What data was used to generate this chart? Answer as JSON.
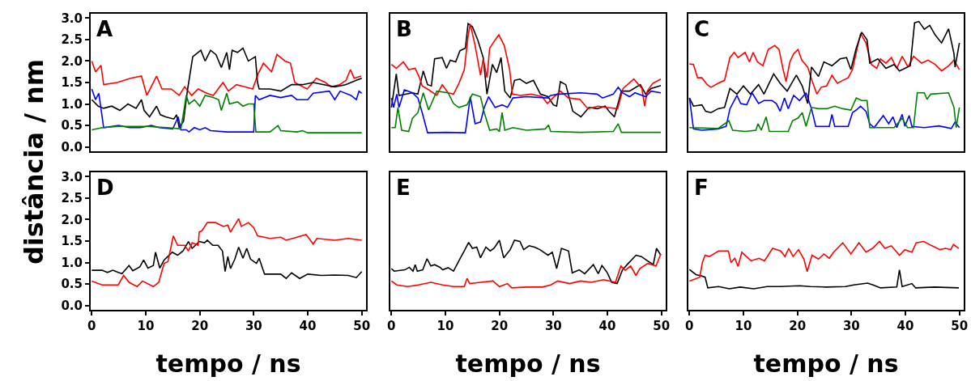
{
  "chart_data": [
    {
      "type": "line",
      "title": "A",
      "ylabel": "distância / nm",
      "xlim": [
        -0.2,
        50.8
      ],
      "ylim": [
        -0.1,
        3.1
      ],
      "xticks": [
        0,
        10,
        20,
        30,
        40,
        50
      ],
      "yticks": [
        {
          "value": 0,
          "label": "0.0"
        },
        {
          "value": 0.5,
          "label": "0.5"
        },
        {
          "value": 1,
          "label": "1.0"
        },
        {
          "value": 1.5,
          "label": "1.5"
        },
        {
          "value": 2,
          "label": "2.0"
        },
        {
          "value": 2.5,
          "label": "2.5"
        },
        {
          "value": 3,
          "label": "3.0"
        }
      ],
      "tick_labels": "y",
      "series": [
        {
          "color": "#ff0000",
          "x": [
            0,
            0.7,
            1.7,
            2.2,
            4.7,
            7.2,
            9.2,
            10.2,
            12,
            13,
            14.7,
            16.2,
            17.2,
            18.5,
            19.7,
            21.3,
            22.5,
            24.3,
            25.3,
            26.8,
            28.3,
            29.8,
            30.8,
            31.8,
            33.3,
            34.3,
            35.8,
            36.8,
            37.6,
            38.3,
            39.9,
            41.6,
            43.3,
            44.3,
            45.9,
            47.1,
            47.9,
            48.6,
            49.9
          ],
          "values": [
            2.0,
            1.75,
            1.9,
            1.45,
            1.5,
            1.6,
            1.65,
            1.2,
            1.65,
            1.35,
            1.35,
            1.2,
            1.4,
            1.2,
            1.35,
            1.25,
            1.2,
            1.5,
            1.3,
            1.45,
            1.4,
            1.35,
            1.7,
            1.95,
            1.75,
            2.15,
            2.0,
            1.95,
            1.5,
            1.45,
            1.35,
            1.6,
            1.5,
            1.4,
            1.45,
            1.55,
            1.8,
            1.6,
            1.65
          ]
        },
        {
          "color": "#000000",
          "x": [
            0,
            1.2,
            2.2,
            3.7,
            5.2,
            6.7,
            8.2,
            9.2,
            9.7,
            10.7,
            12,
            12.7,
            13.7,
            15.2,
            15.7,
            16.2,
            17,
            17.7,
            18.7,
            20.2,
            21,
            22,
            23,
            24,
            25,
            25.5,
            26,
            27,
            28,
            29,
            30.3,
            30.7,
            31,
            33,
            35,
            37,
            39,
            41,
            43,
            45,
            47,
            49,
            50
          ],
          "values": [
            1.1,
            0.95,
            0.9,
            0.95,
            0.85,
            1.0,
            0.9,
            1.1,
            0.85,
            0.7,
            0.95,
            0.75,
            0.7,
            0.65,
            0.75,
            0.45,
            0.6,
            1.3,
            2.1,
            2.25,
            2.0,
            2.25,
            2.15,
            1.85,
            2.2,
            1.8,
            2.25,
            2.2,
            2.3,
            2.0,
            2.1,
            1.5,
            1.35,
            1.35,
            1.3,
            1.45,
            1.45,
            1.5,
            1.45,
            1.4,
            1.45,
            1.55,
            1.6
          ]
        },
        {
          "color": "#0000ff",
          "x": [
            0,
            0.7,
            1.3,
            2.2,
            5,
            7,
            9,
            11,
            12.5,
            15,
            16,
            16.5,
            17.5,
            18,
            19,
            20,
            21,
            22,
            25,
            30,
            30.3,
            31,
            33,
            35,
            37,
            38,
            40,
            41,
            44,
            45,
            46,
            48,
            49,
            49.5,
            50
          ],
          "values": [
            1.35,
            1.1,
            1.25,
            0.45,
            0.5,
            0.45,
            0.45,
            0.5,
            0.45,
            0.42,
            0.7,
            0.4,
            0.4,
            0.35,
            0.45,
            0.4,
            0.45,
            0.38,
            0.35,
            0.35,
            1.2,
            1.1,
            1.2,
            1.15,
            1.2,
            1.1,
            1.1,
            1.25,
            1.3,
            1.1,
            1.3,
            1.2,
            1.1,
            1.3,
            1.25
          ]
        },
        {
          "color": "#008000",
          "x": [
            0,
            2,
            5,
            10,
            14,
            16.5,
            17,
            17.5,
            18,
            19,
            20,
            21,
            22.5,
            23.5,
            24,
            25,
            25.5,
            27,
            28,
            29,
            30,
            30.4,
            33,
            34.5,
            35,
            38,
            39,
            40,
            45,
            50
          ],
          "values": [
            0.4,
            0.45,
            0.48,
            0.48,
            0.45,
            0.42,
            0.8,
            1.2,
            1.0,
            1.1,
            0.95,
            1.2,
            1.15,
            1.1,
            0.85,
            1.25,
            1.0,
            1.05,
            0.95,
            1.0,
            1.0,
            0.35,
            0.35,
            0.5,
            0.38,
            0.35,
            0.38,
            0.33,
            0.33,
            0.33
          ]
        }
      ]
    },
    {
      "type": "line",
      "title": "B",
      "xlim": [
        -0.2,
        50.8
      ],
      "ylim": [
        -0.1,
        3.1
      ],
      "tick_labels": false,
      "series": [
        {
          "color": "#000000",
          "x": [
            0,
            0.9,
            1.4,
            3.9,
            4.9,
            5.9,
            6.7,
            7.4,
            8,
            9.4,
            10.2,
            10.9,
            11.9,
            12.7,
            13.7,
            14.2,
            15,
            16,
            17,
            17.7,
            18.7,
            19.5,
            20.3,
            21,
            22,
            22.8,
            23.8,
            25,
            26.3,
            27.6,
            29,
            30,
            30.6,
            31.3,
            32.3,
            33.6,
            35.1,
            36.6,
            38.1,
            39.6,
            40.3,
            41.3,
            42.6,
            44.1,
            46.1,
            47.1,
            48.1,
            49.9
          ],
          "values": [
            0.92,
            1.7,
            1.2,
            1.26,
            1.23,
            1.77,
            1.45,
            1.42,
            2.05,
            2.08,
            1.83,
            2.02,
            1.98,
            2.24,
            2.3,
            2.87,
            2.8,
            2.49,
            2.08,
            1.23,
            1.92,
            1.73,
            2.08,
            1.3,
            1.14,
            1.55,
            1.58,
            1.48,
            1.55,
            1.23,
            1.17,
            0.98,
            0.95,
            1.52,
            1.45,
            0.83,
            0.7,
            0.92,
            0.89,
            0.95,
            0.83,
            0.7,
            1.3,
            1.3,
            1.45,
            1.23,
            1.36,
            1.43
          ]
        },
        {
          "color": "#ff0000",
          "x": [
            0,
            0.9,
            2.2,
            3.2,
            4.4,
            5.2,
            5.7,
            6.9,
            8.4,
            9.4,
            10.5,
            11.5,
            12.5,
            13.5,
            14.2,
            14.6,
            15.5,
            16.5,
            17,
            17.7,
            18.2,
            19.2,
            19.9,
            20.9,
            21.9,
            22.4,
            23.9,
            25.9,
            27.9,
            28.9,
            29.9,
            31.3,
            32.8,
            34.9,
            36.4,
            38.3,
            39.8,
            41.9,
            42.9,
            44.9,
            46.4,
            46.9,
            47.4,
            48.4,
            49.9
          ],
          "values": [
            1.92,
            1.83,
            1.98,
            1.8,
            1.83,
            1.61,
            1.42,
            1.33,
            1.2,
            1.45,
            1.26,
            1.23,
            1.48,
            1.8,
            2.58,
            2.86,
            2.36,
            1.67,
            2.05,
            1.61,
            2.3,
            2.49,
            2.61,
            2.36,
            1.8,
            1.23,
            1.2,
            1.23,
            1.17,
            1.01,
            1.14,
            1.3,
            1.14,
            1.11,
            0.89,
            0.95,
            0.92,
            0.89,
            1.36,
            1.58,
            1.36,
            0.95,
            1.3,
            1.48,
            1.58
          ]
        },
        {
          "color": "#0000ff",
          "x": [
            0,
            0.4,
            1,
            1.4,
            2.4,
            3.9,
            4.9,
            5.7,
            6.7,
            10,
            13.7,
            14.6,
            15.5,
            16.5,
            17.2,
            18,
            19.2,
            20.5,
            21.5,
            22.5,
            25,
            28.9,
            29.5,
            31,
            35.1,
            38.1,
            39.1,
            41.1,
            42,
            42.8,
            44.1,
            45.1,
            47.1,
            48.1,
            49.9
          ],
          "values": [
            1.14,
            0.92,
            1.23,
            0.92,
            1.33,
            1.26,
            1.14,
            0.8,
            0.33,
            0.34,
            0.33,
            1.17,
            0.54,
            0.58,
            0.92,
            1.17,
            0.92,
            0.98,
            0.92,
            1.14,
            1.17,
            1.14,
            1.2,
            1.23,
            1.26,
            1.23,
            1.14,
            1.23,
            1.39,
            1.26,
            1.17,
            1.26,
            1.17,
            1.3,
            1.26
          ]
        },
        {
          "color": "#008000",
          "x": [
            0,
            0.7,
            1.2,
            1.9,
            3.2,
            3.9,
            4.9,
            5.9,
            6.9,
            8.4,
            10.5,
            11.5,
            12.5,
            14,
            15,
            16.5,
            17.2,
            18.2,
            19.5,
            20,
            20.5,
            21,
            22.5,
            25,
            28.5,
            29.1,
            29.5,
            35.1,
            41.1,
            42,
            42.6,
            49.9
          ],
          "values": [
            0.45,
            0.45,
            0.92,
            0.39,
            0.36,
            0.67,
            0.8,
            1.26,
            0.86,
            1.3,
            1.26,
            1.01,
            0.92,
            0.98,
            1.23,
            1.17,
            0.8,
            0.39,
            0.42,
            0.36,
            0.8,
            0.39,
            0.45,
            0.39,
            0.42,
            0.51,
            0.36,
            0.34,
            0.36,
            0.54,
            0.34,
            0.34
          ]
        }
      ]
    },
    {
      "type": "line",
      "title": "C",
      "xlim": [
        -0.2,
        50.8
      ],
      "ylim": [
        -0.1,
        3.1
      ],
      "tick_labels": false,
      "series": [
        {
          "color": "#ff0000",
          "x": [
            0,
            0.75,
            1.5,
            2.3,
            3.3,
            4,
            5.3,
            6.5,
            7.5,
            8.3,
            9,
            10.3,
            11.1,
            11.8,
            12.6,
            13.6,
            14.6,
            15.8,
            16.6,
            17.3,
            17.9,
            18.6,
            19.3,
            20.1,
            20.8,
            21.9,
            22.6,
            23.6,
            24.4,
            25.4,
            26.4,
            27.4,
            28.4,
            29.4,
            30.2,
            30.9,
            31.7,
            32.7,
            33.7,
            34.7,
            35.4,
            36.4,
            37.4,
            38.4,
            39.4,
            40.5,
            41.5,
            43,
            44.2,
            45.5,
            46.7,
            48,
            49,
            50
          ],
          "values": [
            1.93,
            1.92,
            1.61,
            1.61,
            1.45,
            1.39,
            1.48,
            1.55,
            2.08,
            2.2,
            2.08,
            2.2,
            1.98,
            2.2,
            1.98,
            1.89,
            2.27,
            2.36,
            2.27,
            1.83,
            1.52,
            1.98,
            2.17,
            2.27,
            2.02,
            1.86,
            1.58,
            1.23,
            1.39,
            1.42,
            1.67,
            1.48,
            1.55,
            1.61,
            1.8,
            2.2,
            2.64,
            2.42,
            1.92,
            1.83,
            2.05,
            1.95,
            2.08,
            1.83,
            2.11,
            1.86,
            2.11,
            1.95,
            2.02,
            1.92,
            1.77,
            1.89,
            2.02,
            1.8
          ]
        },
        {
          "color": "#000000",
          "x": [
            0,
            0.75,
            2.3,
            3,
            4,
            5.3,
            6.5,
            7.5,
            8.8,
            10,
            11.3,
            12.8,
            13.8,
            15.6,
            16.8,
            18.1,
            19.8,
            20.9,
            21.9,
            22.6,
            23.9,
            24.9,
            26.4,
            27.9,
            29.1,
            29.9,
            30.9,
            31.9,
            32.9,
            33.4,
            34.9,
            36.4,
            37.9,
            38.9,
            40.9,
            41.7,
            42.5,
            43.5,
            44.5,
            45.5,
            46.7,
            48,
            49,
            49.2,
            50
          ],
          "values": [
            1.14,
            0.95,
            0.98,
            0.83,
            0.8,
            0.89,
            0.92,
            1.36,
            1.23,
            1.42,
            1.23,
            1.45,
            1.23,
            1.7,
            1.48,
            1.3,
            1.67,
            1.42,
            1.01,
            1.86,
            1.64,
            1.98,
            1.89,
            2.05,
            2.08,
            1.8,
            2.3,
            2.67,
            2.49,
            1.95,
            2.05,
            1.83,
            1.92,
            1.77,
            1.89,
            2.89,
            2.92,
            2.74,
            2.83,
            2.61,
            2.42,
            2.75,
            2.17,
            1.86,
            2.42
          ]
        },
        {
          "color": "#0000ff",
          "x": [
            0,
            0.75,
            2.3,
            5.3,
            6.8,
            7.5,
            8.8,
            9.5,
            10.6,
            11.6,
            12.8,
            13.8,
            15.3,
            16.1,
            16.8,
            17.6,
            18.3,
            19.3,
            20.4,
            21.6,
            22.6,
            23.4,
            25.9,
            26.4,
            26.9,
            29.4,
            30.2,
            30.9,
            31.7,
            32.7,
            33.4,
            34.2,
            35.9,
            36.9,
            37.7,
            38.4,
            39.4,
            39.9,
            40.7,
            41.2,
            43.5,
            46.2,
            48.5,
            49.2,
            50
          ],
          "values": [
            1.14,
            0.42,
            0.39,
            0.42,
            0.48,
            0.89,
            1.2,
            1.01,
            0.98,
            1.26,
            1.01,
            1.08,
            1.08,
            1.01,
            0.83,
            1.14,
            0.89,
            1.2,
            1.08,
            1.26,
            0.89,
            0.48,
            0.48,
            0.76,
            0.48,
            0.48,
            0.8,
            0.86,
            0.95,
            0.83,
            0.54,
            0.45,
            0.73,
            0.54,
            0.7,
            0.45,
            0.76,
            0.48,
            0.73,
            0.48,
            0.45,
            0.49,
            0.43,
            0.58,
            0.45
          ]
        },
        {
          "color": "#008000",
          "x": [
            0,
            5.3,
            7.3,
            8,
            10.3,
            12.3,
            12.7,
            13.3,
            14.2,
            14.8,
            18.3,
            19.1,
            20.1,
            20.9,
            21.6,
            22.6,
            23.9,
            25.4,
            26.9,
            28.4,
            29.9,
            30.9,
            31.9,
            32.9,
            33.4,
            37.9,
            39.4,
            40.4,
            41.5,
            42.2,
            43.5,
            44,
            44.7,
            48,
            49,
            49.4,
            50
          ],
          "values": [
            0.45,
            0.43,
            0.61,
            0.39,
            0.36,
            0.39,
            0.54,
            0.39,
            0.7,
            0.36,
            0.36,
            0.61,
            0.67,
            0.8,
            0.48,
            0.92,
            0.89,
            0.89,
            0.95,
            0.89,
            0.86,
            1.14,
            1.08,
            1.08,
            0.45,
            0.45,
            0.67,
            0.45,
            0.45,
            1.26,
            1.26,
            1.11,
            1.23,
            1.26,
            0.92,
            0.45,
            0.92
          ]
        }
      ]
    },
    {
      "type": "line",
      "title": "D",
      "xlabel": "tempo / ns",
      "xlim": [
        -0.2,
        50.8
      ],
      "ylim": [
        -0.1,
        3.1
      ],
      "xticks": [
        0,
        10,
        20,
        30,
        40,
        50
      ],
      "yticks": [
        {
          "value": 0,
          "label": "0.0"
        },
        {
          "value": 0.5,
          "label": "0.5"
        },
        {
          "value": 1,
          "label": "1.0"
        },
        {
          "value": 1.5,
          "label": "1.5"
        },
        {
          "value": 2,
          "label": "2.0"
        },
        {
          "value": 2.5,
          "label": "2.5"
        },
        {
          "value": 3,
          "label": "3.0"
        }
      ],
      "series": [
        {
          "color": "#000000",
          "x": [
            0,
            1.9,
            2.9,
            3.9,
            4.9,
            5.6,
            6.9,
            7.6,
            8.9,
            9.6,
            10.4,
            11.4,
            11.8,
            12.6,
            13.4,
            14.9,
            15.9,
            16.9,
            17.9,
            18.6,
            19.9,
            20.9,
            21.4,
            22.4,
            23.4,
            24.2,
            24.7,
            25.2,
            25.7,
            26.5,
            27.2,
            28,
            28.7,
            29.4,
            30.5,
            31,
            32,
            35,
            36,
            37,
            38.5,
            40,
            42.5,
            45,
            47.5,
            49,
            50
          ],
          "values": [
            0.82,
            0.82,
            0.77,
            0.82,
            0.77,
            0.74,
            0.93,
            0.81,
            0.9,
            1.06,
            0.87,
            0.93,
            1.24,
            0.87,
            1.06,
            1.24,
            1.17,
            1.27,
            1.49,
            1.33,
            1.49,
            1.46,
            1.52,
            1.4,
            1.4,
            1.27,
            0.79,
            1.14,
            0.86,
            1.08,
            1.36,
            1.1,
            1.33,
            1.08,
            0.98,
            1.1,
            0.73,
            0.73,
            0.63,
            0.76,
            0.63,
            0.73,
            0.7,
            0.71,
            0.7,
            0.65,
            0.79
          ]
        },
        {
          "color": "#ff0000",
          "x": [
            0,
            1.9,
            3.9,
            4.9,
            5.9,
            6.9,
            8.4,
            9.4,
            11.4,
            12.4,
            13.4,
            14.1,
            15.1,
            15.9,
            17.2,
            17.9,
            18.6,
            19.7,
            19.9,
            20.4,
            21.4,
            22.9,
            24.4,
            25.2,
            25.7,
            27.2,
            27.7,
            29,
            30,
            30.7,
            33,
            35,
            36,
            38,
            39.7,
            40.5,
            41,
            41.7,
            45,
            47.5,
            50
          ],
          "values": [
            0.57,
            0.48,
            0.48,
            0.48,
            0.7,
            0.54,
            0.44,
            0.57,
            0.44,
            0.54,
            0.98,
            1.02,
            1.62,
            1.4,
            1.4,
            1.27,
            1.46,
            1.4,
            1.71,
            1.74,
            1.93,
            1.93,
            1.84,
            1.87,
            1.71,
            2.02,
            1.84,
            1.93,
            1.81,
            1.62,
            1.56,
            1.59,
            1.52,
            1.59,
            1.65,
            1.52,
            1.43,
            1.56,
            1.52,
            1.56,
            1.52
          ]
        }
      ]
    },
    {
      "type": "line",
      "title": "E",
      "xlabel": "tempo / ns",
      "xlim": [
        -0.2,
        50.8
      ],
      "ylim": [
        -0.1,
        3.1
      ],
      "xticks": [
        0,
        10,
        20,
        30,
        40,
        50
      ],
      "tick_labels": "x",
      "series": [
        {
          "color": "#000000",
          "x": [
            0,
            0.5,
            2.5,
            3.3,
            4,
            4.4,
            4.8,
            5.8,
            6.6,
            7.3,
            8,
            9,
            9.5,
            10.5,
            11.5,
            12.8,
            13.5,
            14.3,
            15,
            15.8,
            16.5,
            17.5,
            18.3,
            19,
            20,
            20.8,
            22,
            22.8,
            23.8,
            24.5,
            25.5,
            26.5,
            27.5,
            29,
            29.8,
            30.6,
            31.5,
            32.8,
            33.5,
            34.8,
            35.8,
            37.4,
            38.3,
            39,
            40,
            40.8,
            41.8,
            42.8,
            43.8,
            45.3,
            46.3,
            47.3,
            48.5,
            49.1,
            49.9
          ],
          "values": [
            0.86,
            0.8,
            0.83,
            0.89,
            0.8,
            0.95,
            0.8,
            0.83,
            1.09,
            0.92,
            0.95,
            0.89,
            0.83,
            0.88,
            0.8,
            1.11,
            1.27,
            1.47,
            1.33,
            1.36,
            1.11,
            1.36,
            1.27,
            1.33,
            1.52,
            1.11,
            1.3,
            1.52,
            1.49,
            1.3,
            1.39,
            1.36,
            1.3,
            1.17,
            1.24,
            0.86,
            1.33,
            1.27,
            0.76,
            0.83,
            0.74,
            0.95,
            0.74,
            0.93,
            0.76,
            0.54,
            0.51,
            0.83,
            0.97,
            1.17,
            1.14,
            1.05,
            0.95,
            1.33,
            1.17
          ]
        },
        {
          "color": "#ff0000",
          "x": [
            0,
            1,
            3,
            5,
            7.3,
            9.5,
            11.5,
            13.5,
            14,
            14.5,
            16.5,
            18.8,
            20,
            21.5,
            22.3,
            25,
            28,
            29.5,
            30.8,
            33,
            35,
            37,
            39.3,
            41.5,
            42.5,
            43.3,
            44.3,
            45.3,
            46,
            47.5,
            49,
            49.9
          ],
          "values": [
            0.57,
            0.48,
            0.44,
            0.48,
            0.54,
            0.48,
            0.44,
            0.44,
            0.63,
            0.51,
            0.54,
            0.57,
            0.44,
            0.51,
            0.41,
            0.43,
            0.43,
            0.48,
            0.57,
            0.51,
            0.57,
            0.54,
            0.6,
            0.54,
            0.92,
            0.82,
            0.92,
            0.7,
            0.86,
            0.98,
            0.92,
            1.2
          ]
        }
      ]
    },
    {
      "type": "line",
      "title": "F",
      "xlabel": "tempo / ns",
      "xlim": [
        -0.2,
        50.8
      ],
      "ylim": [
        -0.1,
        3.1
      ],
      "xticks": [
        0,
        10,
        20,
        30,
        40,
        50
      ],
      "tick_labels": "x",
      "series": [
        {
          "color": "#000000",
          "x": [
            0,
            1.2,
            2.2,
            2.9,
            3.4,
            5.4,
            7.4,
            9.4,
            11.9,
            14.4,
            16.9,
            18.4,
            20.4,
            22.4,
            25.4,
            28.9,
            30.4,
            33,
            34,
            35.4,
            38.4,
            38.9,
            39.4,
            41.2,
            41.9,
            45.4,
            49.9
          ],
          "values": [
            0.84,
            0.72,
            0.69,
            0.66,
            0.41,
            0.44,
            0.39,
            0.43,
            0.39,
            0.44,
            0.44,
            0.45,
            0.46,
            0.44,
            0.43,
            0.44,
            0.48,
            0.52,
            0.48,
            0.41,
            0.43,
            0.83,
            0.44,
            0.51,
            0.41,
            0.43,
            0.41
          ]
        },
        {
          "color": "#ff0000",
          "x": [
            0,
            1.9,
            2.4,
            2.9,
            3.7,
            5.4,
            7.2,
            7.7,
            8.4,
            9,
            9.7,
            11.4,
            12.9,
            13.9,
            15.4,
            16.9,
            17.7,
            18.4,
            19.2,
            20.2,
            21.2,
            21.8,
            22.7,
            23.9,
            24.9,
            25.9,
            26.7,
            28.4,
            29.9,
            31.4,
            32.7,
            33.9,
            35.2,
            36.2,
            37.4,
            38.9,
            39.9,
            41.2,
            42,
            43.4,
            44.9,
            46.4,
            47.4,
            48.4,
            48.9,
            49.9
          ],
          "values": [
            0.57,
            0.66,
            1.0,
            1.17,
            1.14,
            1.27,
            1.27,
            1.0,
            1.1,
            0.91,
            1.24,
            1.04,
            1.1,
            1.04,
            1.33,
            1.27,
            1.14,
            1.33,
            1.14,
            1.3,
            1.08,
            0.79,
            1.17,
            1.08,
            1.2,
            1.1,
            1.24,
            1.46,
            1.2,
            1.46,
            1.24,
            1.33,
            1.49,
            1.33,
            1.39,
            1.17,
            1.3,
            1.24,
            1.46,
            1.49,
            1.39,
            1.3,
            1.33,
            1.3,
            1.42,
            1.33
          ]
        }
      ]
    }
  ]
}
